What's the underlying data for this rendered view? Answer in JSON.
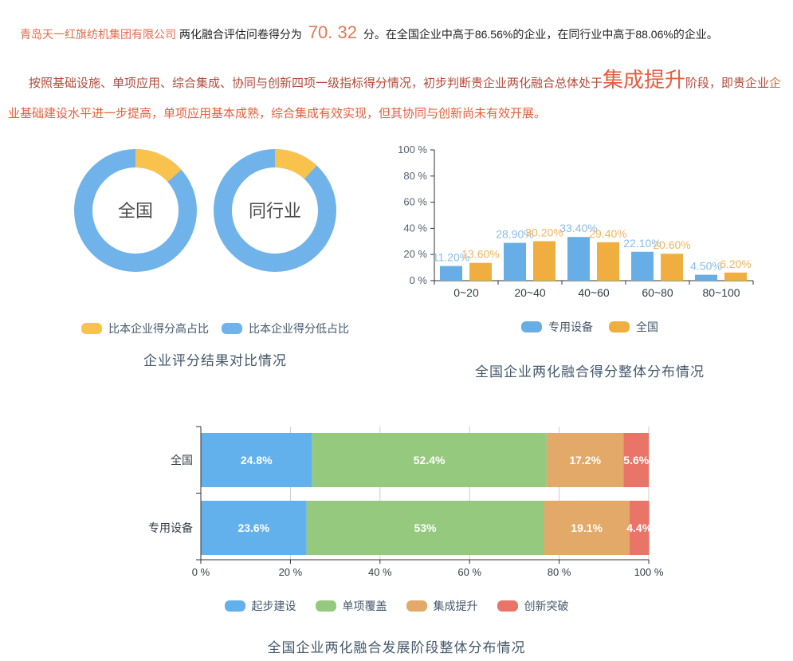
{
  "intro": {
    "company": "青岛天一红旗纺机集团有限公司",
    "score_prefix": " 两化融合评估问卷得分为 ",
    "score": "70. 32",
    "score_suffix": " 分。在全国企业中高于86.56%的企业，在同行业中高于88.06%的企业。"
  },
  "assessment": {
    "part1": "按照基础设施、单项应用、综合集成、协同与创新四项一级指标得分情况，初步判断贵企业两化融合总体处于",
    "stage": "集成提升",
    "part2": "阶段，即贵企业",
    "part3": "企业基础建设水平进一步提高，单项应用基本成熟，综合集成有效实现，但其协同与创新尚未有效开展。"
  },
  "colors": {
    "body_text": "#222222",
    "dark_red_text": "#b14a3a",
    "orange_red_text": "#e4603e",
    "accent_stage": "#e65c3c",
    "title_text": "#44586b",
    "axis_line": "#333333",
    "grid_line": "#cccccc",
    "donut_blue": "#6fb3ea",
    "donut_yellow": "#f9c24c",
    "bar_blue": "#68aee6",
    "bar_orange": "#efae3f",
    "stack_blue": "#63b1ec",
    "stack_green": "#95c97e",
    "stack_tan": "#e2a968",
    "stack_red": "#e97468"
  },
  "chart_data": [
    {
      "type": "pie",
      "subtype": "donut-pair",
      "title": "企业评分结果对比情况",
      "legend_position": "bottom",
      "legend": [
        {
          "label": "比本企业得分高占比",
          "color": "#f9c24c"
        },
        {
          "label": "比本企业得分低占比",
          "color": "#6fb3ea"
        }
      ],
      "donuts": [
        {
          "label": "全国",
          "slices": [
            {
              "name": "比本企业得分高占比",
              "value": 13.44,
              "color": "#f9c24c"
            },
            {
              "name": "比本企业得分低占比",
              "value": 86.56,
              "color": "#6fb3ea"
            }
          ]
        },
        {
          "label": "同行业",
          "slices": [
            {
              "name": "比本企业得分高占比",
              "value": 11.94,
              "color": "#f9c24c"
            },
            {
              "name": "比本企业得分低占比",
              "value": 88.06,
              "color": "#6fb3ea"
            }
          ]
        }
      ]
    },
    {
      "type": "bar",
      "title": "全国企业两化融合得分整体分布情况",
      "categories": [
        "0~20",
        "20~40",
        "40~60",
        "60~80",
        "80~100"
      ],
      "series": [
        {
          "name": "专用设备",
          "color": "#68aee6",
          "label_color": "#8abbe8",
          "values": [
            11.2,
            28.9,
            33.4,
            22.1,
            4.5
          ],
          "labels": [
            "11.20%",
            "28.90%",
            "33.40%",
            "22.10%",
            "4.50%"
          ]
        },
        {
          "name": "全国",
          "color": "#efae3f",
          "label_color": "#f2b55e",
          "values": [
            13.6,
            30.2,
            29.4,
            20.6,
            6.2
          ],
          "labels": [
            "13.60%",
            "30.20%",
            "29.40%",
            "20.60%",
            "6.20%"
          ]
        }
      ],
      "ylabel": "",
      "xlabel": "",
      "ylim": [
        0,
        100
      ],
      "y_ticks": [
        "0 %",
        "20 %",
        "40 %",
        "60 %",
        "80 %",
        "100 %"
      ],
      "grid": false,
      "legend_position": "bottom"
    },
    {
      "type": "bar",
      "subtype": "horizontal-stacked",
      "title": "全国企业两化融合发展阶段整体分布情况",
      "categories": [
        "全国",
        "专用设备"
      ],
      "series": [
        {
          "name": "起步建设",
          "color": "#63b1ec",
          "values": [
            24.8,
            23.6
          ],
          "labels": [
            "24.8%",
            "23.6%"
          ]
        },
        {
          "name": "单项覆盖",
          "color": "#95c97e",
          "values": [
            52.4,
            53
          ],
          "labels": [
            "52.4%",
            "53%"
          ]
        },
        {
          "name": "集成提升",
          "color": "#e2a968",
          "values": [
            17.2,
            19.1
          ],
          "labels": [
            "17.2%",
            "19.1%"
          ]
        },
        {
          "name": "创新突破",
          "color": "#e97468",
          "values": [
            5.6,
            4.4
          ],
          "labels": [
            "5.6%",
            "4.4%"
          ]
        }
      ],
      "xlim": [
        0,
        100
      ],
      "x_ticks": [
        "0 %",
        "20 %",
        "40 %",
        "60 %",
        "80 %",
        "100 %"
      ],
      "grid": true,
      "legend_position": "bottom"
    }
  ]
}
